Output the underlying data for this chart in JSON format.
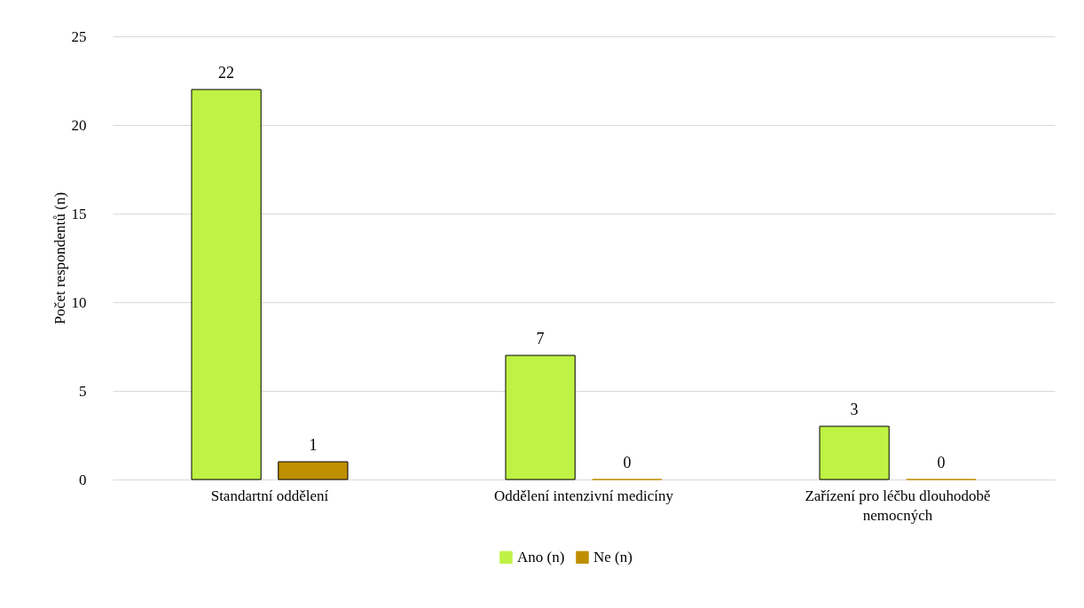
{
  "chart_data": {
    "type": "bar",
    "ylabel": "Počet respondentů  (n)",
    "categories": [
      "Standartní oddělení",
      "Oddělení intenzivní medicíny",
      "Zařízení pro léčbu dlouhodobě nemocných"
    ],
    "series": [
      {
        "name": "Ano (n)",
        "color": "#bef244",
        "values": [
          22,
          7,
          3
        ]
      },
      {
        "name": "Ne (n)",
        "color": "#bf8f00",
        "values": [
          1,
          0,
          0
        ]
      }
    ],
    "ylim": [
      0,
      25
    ],
    "yticks": [
      0,
      5,
      10,
      15,
      20,
      25
    ],
    "grid": "y",
    "legend": "bottom",
    "data_labels": true
  }
}
